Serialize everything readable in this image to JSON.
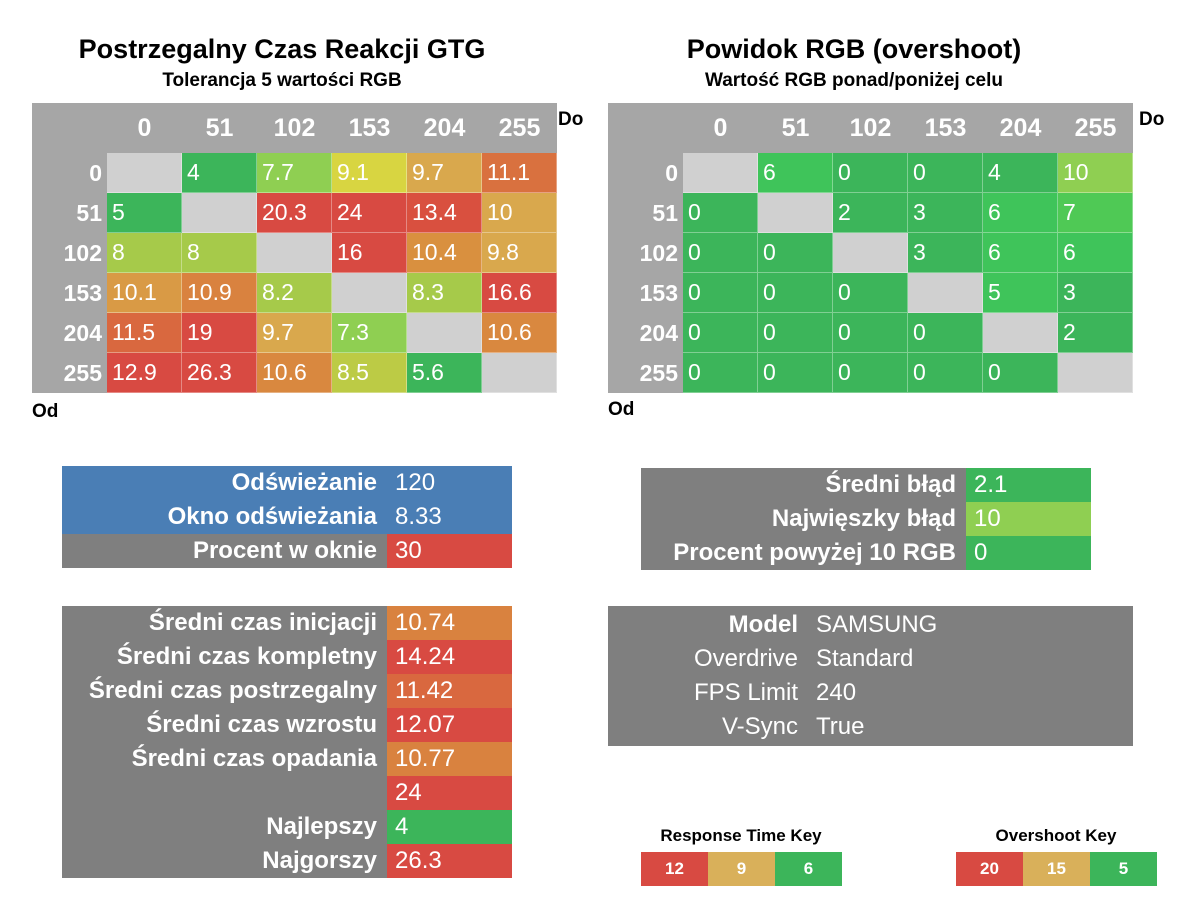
{
  "left": {
    "title": "Postrzegalny Czas Reakcji GTG",
    "subtitle": "Tolerancja 5 wartości RGB",
    "to_label": "Do",
    "from_label": "Od",
    "headers": [
      "0",
      "51",
      "102",
      "153",
      "204",
      "255"
    ],
    "rows": [
      {
        "label": "0",
        "cells": [
          "",
          "4",
          "7.7",
          "9.1",
          "9.7",
          "11.1"
        ],
        "colors": [
          "#d0d0d0",
          "#3cb55a",
          "#8fcf52",
          "#d8d541",
          "#d9a84d",
          "#d9713f"
        ]
      },
      {
        "label": "51",
        "cells": [
          "5",
          "",
          "20.3",
          "24",
          "13.4",
          "10"
        ],
        "colors": [
          "#3cb55a",
          "#d0d0d0",
          "#d84a42",
          "#d84a42",
          "#d9503f",
          "#d9a84d"
        ]
      },
      {
        "label": "102",
        "cells": [
          "8",
          "8",
          "",
          "16",
          "10.4",
          "9.8"
        ],
        "colors": [
          "#a6ca4a",
          "#a6ca4a",
          "#d0d0d0",
          "#d84a42",
          "#d9903f",
          "#d9a84d"
        ]
      },
      {
        "label": "153",
        "cells": [
          "10.1",
          "10.9",
          "8.2",
          "",
          "8.3",
          "16.6"
        ],
        "colors": [
          "#d99a45",
          "#d9823f",
          "#a6ca4a",
          "#d0d0d0",
          "#a6ca4a",
          "#d84a42"
        ]
      },
      {
        "label": "204",
        "cells": [
          "11.5",
          "19",
          "9.7",
          "7.3",
          "",
          "10.6"
        ],
        "colors": [
          "#d9683f",
          "#d84a42",
          "#d9a84d",
          "#8fcf52",
          "#d0d0d0",
          "#d9883f"
        ]
      },
      {
        "label": "255",
        "cells": [
          "12.9",
          "26.3",
          "10.6",
          "8.5",
          "5.6",
          ""
        ],
        "colors": [
          "#d84a42",
          "#d84a42",
          "#d9883f",
          "#bccb45",
          "#3cb55a",
          "#d0d0d0"
        ]
      }
    ]
  },
  "right": {
    "title": "Powidok RGB (overshoot)",
    "subtitle": "Wartość RGB ponad/poniżej celu",
    "to_label": "Do",
    "from_label": "Od",
    "headers": [
      "0",
      "51",
      "102",
      "153",
      "204",
      "255"
    ],
    "rows": [
      {
        "label": "0",
        "cells": [
          "",
          "6",
          "0",
          "0",
          "4",
          "10"
        ],
        "colors": [
          "#d0d0d0",
          "#3fc45a",
          "#3cb55a",
          "#3cb55a",
          "#3cb55a",
          "#8fcf52"
        ]
      },
      {
        "label": "51",
        "cells": [
          "0",
          "",
          "2",
          "3",
          "6",
          "7"
        ],
        "colors": [
          "#3cb55a",
          "#d0d0d0",
          "#3cb55a",
          "#3cb55a",
          "#3fc45a",
          "#4fc955"
        ]
      },
      {
        "label": "102",
        "cells": [
          "0",
          "0",
          "",
          "3",
          "6",
          "6"
        ],
        "colors": [
          "#3cb55a",
          "#3cb55a",
          "#d0d0d0",
          "#3cb55a",
          "#3fc45a",
          "#3fc45a"
        ]
      },
      {
        "label": "153",
        "cells": [
          "0",
          "0",
          "0",
          "",
          "5",
          "3"
        ],
        "colors": [
          "#3cb55a",
          "#3cb55a",
          "#3cb55a",
          "#d0d0d0",
          "#3fc45a",
          "#3cb55a"
        ]
      },
      {
        "label": "204",
        "cells": [
          "0",
          "0",
          "0",
          "0",
          "",
          "2"
        ],
        "colors": [
          "#3cb55a",
          "#3cb55a",
          "#3cb55a",
          "#3cb55a",
          "#d0d0d0",
          "#3cb55a"
        ]
      },
      {
        "label": "255",
        "cells": [
          "0",
          "0",
          "0",
          "0",
          "0",
          ""
        ],
        "colors": [
          "#3cb55a",
          "#3cb55a",
          "#3cb55a",
          "#3cb55a",
          "#3cb55a",
          "#d0d0d0"
        ]
      }
    ]
  },
  "refresh_table": [
    {
      "label": "Odświeżanie",
      "value": "120",
      "label_bg": "#4a7eb5",
      "value_bg": "#4a7eb5"
    },
    {
      "label": "Okno odświeżania",
      "value": "8.33",
      "label_bg": "#4a7eb5",
      "value_bg": "#4a7eb5"
    },
    {
      "label": "Procent w oknie",
      "value": "30",
      "label_bg": "#7f7f7f",
      "value_bg": "#d84a42"
    }
  ],
  "error_table": [
    {
      "label": "Średni błąd",
      "value": "2.1",
      "value_bg": "#3cb55a"
    },
    {
      "label": "Najwięszky błąd",
      "value": "10",
      "value_bg": "#8fcf52"
    },
    {
      "label": "Procent powyżej 10 RGB",
      "value": "0",
      "value_bg": "#3cb55a"
    }
  ],
  "stats_table": [
    {
      "label": "Średni czas inicjacji",
      "value": "10.74",
      "value_bg": "#d9823f"
    },
    {
      "label": "Średni czas kompletny",
      "value": "14.24",
      "value_bg": "#d84a42"
    },
    {
      "label": "Średni czas postrzegalny",
      "value": "11.42",
      "value_bg": "#d9683f"
    },
    {
      "label": "Średni czas wzrostu",
      "value": "12.07",
      "value_bg": "#d84a42"
    },
    {
      "label": "Średni czas opadania",
      "value": "10.77",
      "value_bg": "#d9823f"
    },
    {
      "label": "",
      "value": "24",
      "value_bg": "#d84a42"
    },
    {
      "label": "Najlepszy",
      "value": "4",
      "value_bg": "#3cb55a"
    },
    {
      "label": "Najgorszy",
      "value": "26.3",
      "value_bg": "#d84a42"
    }
  ],
  "info_table": [
    {
      "label": "Model",
      "value": "SAMSUNG",
      "bold": true
    },
    {
      "label": "Overdrive",
      "value": "Standard",
      "bold": false
    },
    {
      "label": "FPS Limit",
      "value": "240",
      "bold": false
    },
    {
      "label": "V-Sync",
      "value": "True",
      "bold": false
    }
  ],
  "response_key": {
    "title": "Response Time Key",
    "cells": [
      {
        "text": "12",
        "color": "#d84a42"
      },
      {
        "text": "9",
        "color": "#d9b05a"
      },
      {
        "text": "6",
        "color": "#3cb55a"
      }
    ]
  },
  "overshoot_key": {
    "title": "Overshoot Key",
    "cells": [
      {
        "text": "20",
        "color": "#d84a42"
      },
      {
        "text": "15",
        "color": "#d9b05a"
      },
      {
        "text": "5",
        "color": "#3cb55a"
      }
    ]
  }
}
